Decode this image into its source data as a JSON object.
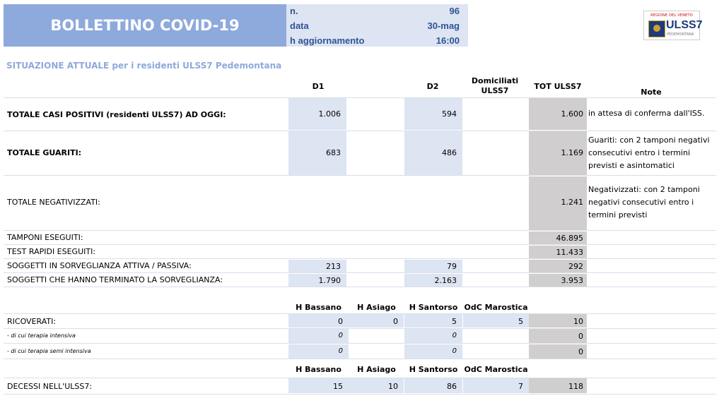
{
  "header": {
    "title": "BOLLETTINO COVID-19",
    "n_label": "n.",
    "n_value": "96",
    "data_label": "data",
    "data_value": "30-mag",
    "h_label": "h aggiornamento",
    "h_value": "16:00",
    "logo_top": "REGIONE DEL VENETO",
    "logo_name": "ULSS7",
    "logo_sub": "PEDEMONTANA"
  },
  "section_title": "SITUAZIONE ATTUALE per i residenti ULSS7 Pedemontana",
  "columns": {
    "d1": "D1",
    "d2": "D2",
    "dom1": "Domiciliati",
    "dom2": "ULSS7",
    "tot": "TOT ULSS7",
    "note": "Note"
  },
  "rows": {
    "casi": {
      "label": "TOTALE CASI POSITIVI (residenti ULSS7) AD OGGI:",
      "d1": "1.006",
      "d2": "594",
      "tot": "1.600",
      "note": "in attesa di conferma dall'ISS."
    },
    "guariti": {
      "label": "TOTALE GUARITI:",
      "d1": "683",
      "d2": "486",
      "tot": "1.169",
      "note1": "Guariti: con 2 tamponi negativi",
      "note2": "consecutivi entro i termini",
      "note3": "previsti e asintomatici"
    },
    "negativizzati": {
      "label": "TOTALE NEGATIVIZZATI:",
      "tot": "1.241",
      "note1": "Negativizzati: con 2 tamponi",
      "note2": "negativi consecutivi entro i",
      "note3": "termini previsti"
    },
    "tamponi": {
      "label": "TAMPONI ESEGUITI:",
      "tot": "46.895"
    },
    "test_rapidi": {
      "label": "TEST RAPIDI ESEGUITI:",
      "tot": "11.433"
    },
    "sorveglianza": {
      "label": "SOGGETTI IN SORVEGLIANZA ATTIVA / PASSIVA:",
      "d1": "213",
      "d2": "79",
      "tot": "292"
    },
    "terminato": {
      "label": "SOGGETTI CHE HANNO TERMINATO LA SORVEGLIANZA:",
      "d1": "1.790",
      "d2": "2.163",
      "tot": "3.953"
    }
  },
  "hospitals": {
    "h1": "H Bassano",
    "h2": "H Asiago",
    "h3": "H Santorso",
    "h4": "OdC Marostica"
  },
  "ricoverati": {
    "label": "RICOVERATI:",
    "h1": "0",
    "h2": "0",
    "h3": "5",
    "h4": "5",
    "tot": "10"
  },
  "intensiva": {
    "label": "- di cui terapia intensiva",
    "h1": "0",
    "h3": "0",
    "tot": "0"
  },
  "semi": {
    "label": "- di cui terapia semi intensiva",
    "h1": "0",
    "h3": "0",
    "tot": "0"
  },
  "decessi": {
    "label": "DECESSI NELL'ULSS7:",
    "h1": "15",
    "h2": "10",
    "h3": "86",
    "h4": "7",
    "tot": "118"
  }
}
